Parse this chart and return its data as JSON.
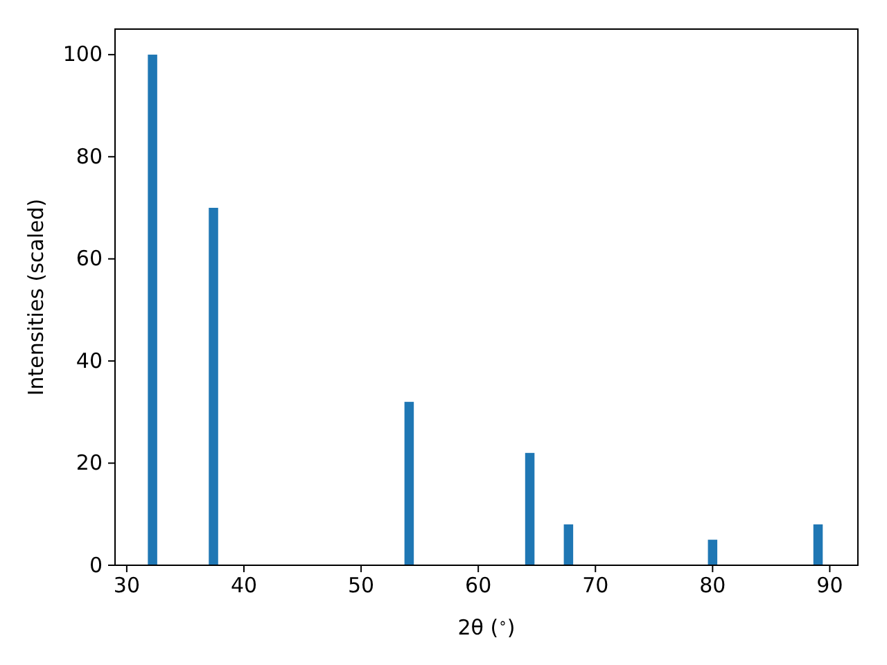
{
  "chart_data": {
    "type": "bar",
    "xlabel": "2θ ($^{∘}$)",
    "ylabel": "Intensities (scaled)",
    "x": [
      32.2,
      37.4,
      54.1,
      64.4,
      67.7,
      80.0,
      89.0
    ],
    "values": [
      100,
      70,
      32,
      22,
      8,
      5,
      8
    ],
    "color": "#1f77b4",
    "xlim": [
      29,
      92.4
    ],
    "xticks": [
      30,
      40,
      50,
      60,
      70,
      80,
      90
    ],
    "ylim": [
      0,
      105
    ],
    "yticks": [
      0,
      20,
      40,
      60,
      80,
      100
    ]
  }
}
